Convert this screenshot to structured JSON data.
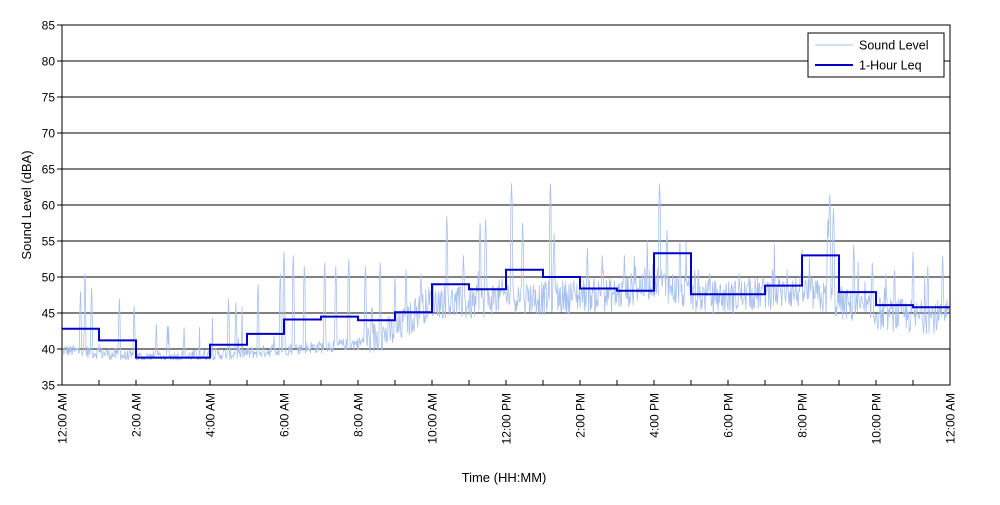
{
  "chart_data": {
    "type": "line",
    "title": "",
    "xlabel": "Time (HH:MM)",
    "ylabel": "Sound Level (dBA)",
    "ylim": [
      35,
      85
    ],
    "y_ticks": [
      35,
      40,
      45,
      50,
      55,
      60,
      65,
      70,
      75,
      80,
      85
    ],
    "xlim_hours": [
      0,
      24
    ],
    "x_ticks": [
      {
        "hour": 0,
        "label": "12:00 AM"
      },
      {
        "hour": 2,
        "label": "2:00 AM"
      },
      {
        "hour": 4,
        "label": "4:00 AM"
      },
      {
        "hour": 6,
        "label": "6:00 AM"
      },
      {
        "hour": 8,
        "label": "8:00 AM"
      },
      {
        "hour": 10,
        "label": "10:00 AM"
      },
      {
        "hour": 12,
        "label": "12:00 PM"
      },
      {
        "hour": 14,
        "label": "2:00 PM"
      },
      {
        "hour": 16,
        "label": "4:00 PM"
      },
      {
        "hour": 18,
        "label": "6:00 PM"
      },
      {
        "hour": 20,
        "label": "8:00 PM"
      },
      {
        "hour": 22,
        "label": "10:00 PM"
      },
      {
        "hour": 24,
        "label": "12:00 AM"
      }
    ],
    "grid": "horizontal",
    "legend_position": "top-right",
    "series": [
      {
        "name": "Sound Level",
        "color": "#a8c0ee",
        "style": "thin-line",
        "hourly_baseline": [
          39.8,
          39.5,
          38.8,
          38.9,
          39.2,
          39.4,
          40.0,
          40.3,
          40.8,
          42.5,
          46.8,
          46.2,
          47.5,
          47.0,
          47.5,
          47.5,
          49.5,
          47.4,
          47.2,
          47.8,
          48.0,
          46.5,
          45.0,
          44.5
        ],
        "peaks": [
          {
            "hour": 0.5,
            "value": 48.0
          },
          {
            "hour": 0.62,
            "value": 51.0
          },
          {
            "hour": 0.8,
            "value": 48.5
          },
          {
            "hour": 1.55,
            "value": 47.0
          },
          {
            "hour": 1.95,
            "value": 46.0
          },
          {
            "hour": 2.55,
            "value": 43.5
          },
          {
            "hour": 2.85,
            "value": 43.2
          },
          {
            "hour": 3.3,
            "value": 43.0
          },
          {
            "hour": 4.5,
            "value": 47.0
          },
          {
            "hour": 4.7,
            "value": 46.5
          },
          {
            "hour": 5.3,
            "value": 49.0
          },
          {
            "hour": 5.9,
            "value": 50.5
          },
          {
            "hour": 6.0,
            "value": 53.5
          },
          {
            "hour": 6.25,
            "value": 53.0
          },
          {
            "hour": 6.55,
            "value": 51.5
          },
          {
            "hour": 7.1,
            "value": 52.0
          },
          {
            "hour": 7.4,
            "value": 51.5
          },
          {
            "hour": 7.75,
            "value": 52.5
          },
          {
            "hour": 8.2,
            "value": 51.5
          },
          {
            "hour": 8.6,
            "value": 52.0
          },
          {
            "hour": 9.0,
            "value": 50.0
          },
          {
            "hour": 9.3,
            "value": 51.0
          },
          {
            "hour": 9.7,
            "value": 50.5
          },
          {
            "hour": 10.4,
            "value": 58.5
          },
          {
            "hour": 10.85,
            "value": 53.0
          },
          {
            "hour": 11.3,
            "value": 57.5
          },
          {
            "hour": 11.45,
            "value": 58.0
          },
          {
            "hour": 12.15,
            "value": 63.0
          },
          {
            "hour": 12.45,
            "value": 57.5
          },
          {
            "hour": 13.2,
            "value": 63.0
          },
          {
            "hour": 13.3,
            "value": 56.0
          },
          {
            "hour": 14.2,
            "value": 54.0
          },
          {
            "hour": 14.6,
            "value": 53.0
          },
          {
            "hour": 15.2,
            "value": 53.0
          },
          {
            "hour": 15.5,
            "value": 51.5
          },
          {
            "hour": 16.15,
            "value": 63.0
          },
          {
            "hour": 16.35,
            "value": 56.5
          },
          {
            "hour": 16.7,
            "value": 55.0
          },
          {
            "hour": 17.1,
            "value": 51.0
          },
          {
            "hour": 17.5,
            "value": 50.5
          },
          {
            "hour": 18.3,
            "value": 50.5
          },
          {
            "hour": 19.2,
            "value": 51.0
          },
          {
            "hour": 19.6,
            "value": 51.0
          },
          {
            "hour": 20.7,
            "value": 58.0
          },
          {
            "hour": 20.75,
            "value": 61.5
          },
          {
            "hour": 20.85,
            "value": 59.5
          },
          {
            "hour": 21.4,
            "value": 54.5
          },
          {
            "hour": 21.9,
            "value": 52.0
          },
          {
            "hour": 22.5,
            "value": 51.0
          },
          {
            "hour": 23.0,
            "value": 53.5
          },
          {
            "hour": 23.4,
            "value": 51.5
          },
          {
            "hour": 23.8,
            "value": 53.0
          }
        ]
      },
      {
        "name": "1-Hour Leq",
        "color": "#0000cc",
        "style": "step",
        "values": [
          42.8,
          41.2,
          38.8,
          38.8,
          40.6,
          42.1,
          44.1,
          44.5,
          44.0,
          45.1,
          49.0,
          48.3,
          51.0,
          50.0,
          48.4,
          48.1,
          53.3,
          47.6,
          47.6,
          48.8,
          53.0,
          47.9,
          46.1,
          45.8
        ]
      }
    ]
  }
}
